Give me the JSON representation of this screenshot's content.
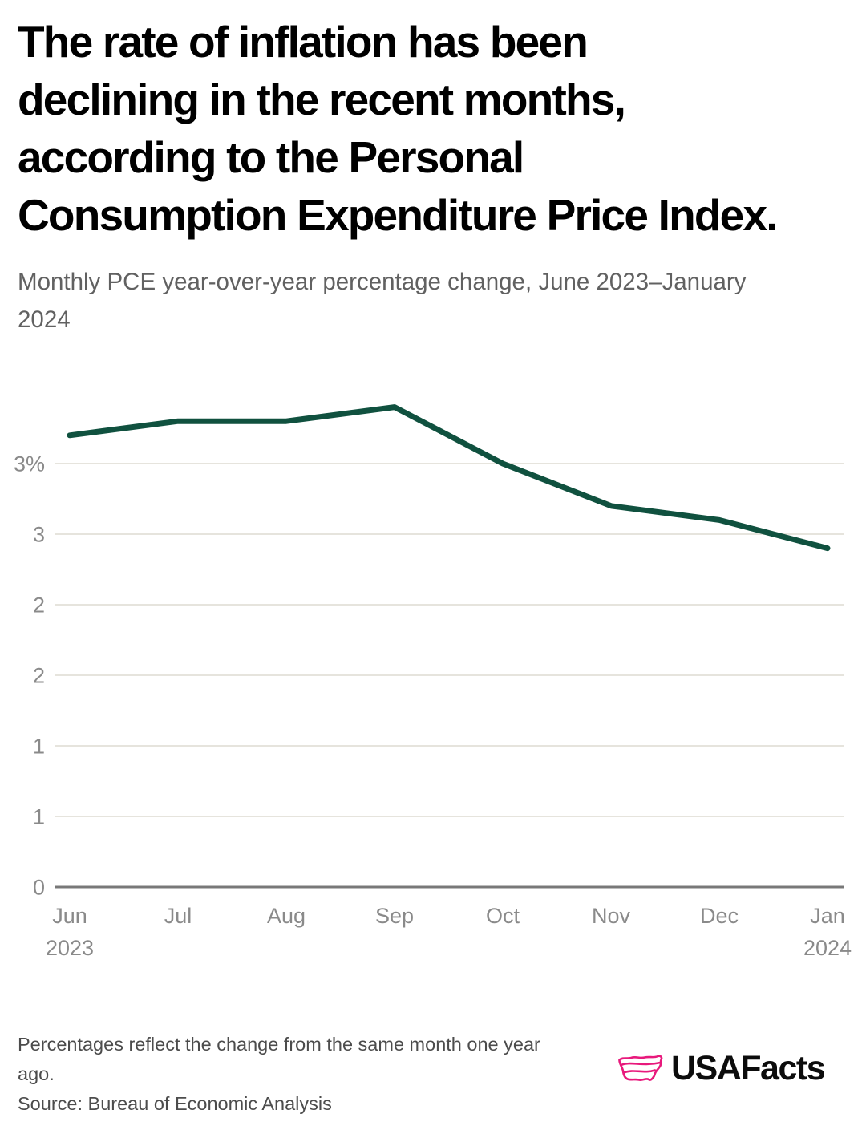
{
  "page": {
    "background": "#ffffff"
  },
  "header": {
    "title": "The rate of inflation has been declining in the recent months, according to the Personal Consumption Expenditure Price Index.",
    "title_lines": [
      "The rate of inflation has been",
      "declining in the recent months,",
      "according to the Personal",
      "Consumption Expenditure Price Index."
    ],
    "subtitle": "Monthly PCE year-over-year percentage change, June 2023–January 2024",
    "subtitle_lines": [
      "Monthly PCE year-over-year percentage change, June 2023–January",
      "2024"
    ]
  },
  "chart_data": {
    "type": "line",
    "title": "The rate of inflation has been declining in the recent months, according to the Personal Consumption Expenditure Price Index.",
    "subtitle": "Monthly PCE year-over-year percentage change, June 2023–January 2024",
    "categories": [
      "Jun 2023",
      "Jul",
      "Aug",
      "Sep",
      "Oct",
      "Nov",
      "Dec",
      "Jan 2024"
    ],
    "x_tick_labels": [
      [
        "Jun",
        "2023"
      ],
      [
        "Jul"
      ],
      [
        "Aug"
      ],
      [
        "Sep"
      ],
      [
        "Oct"
      ],
      [
        "Nov"
      ],
      [
        "Dec"
      ],
      [
        "Jan",
        "2024"
      ]
    ],
    "series": [
      {
        "name": "Monthly PCE year-over-year percentage change",
        "values": [
          3.2,
          3.3,
          3.3,
          3.4,
          3.0,
          2.7,
          2.6,
          2.4
        ]
      }
    ],
    "ylim": [
      0,
      3.55
    ],
    "y_gridlines": [
      {
        "value": 0,
        "label": "0"
      },
      {
        "value": 0.5,
        "label": "1"
      },
      {
        "value": 1,
        "label": "1"
      },
      {
        "value": 1.5,
        "label": "2"
      },
      {
        "value": 2,
        "label": "2"
      },
      {
        "value": 2.5,
        "label": "3"
      },
      {
        "value": 3,
        "label": "3%"
      }
    ],
    "grid": "horizontal",
    "legend": "none",
    "line_color": "#10513f",
    "gridline_color": "#e6e4dd",
    "axis_color": "#787878",
    "tick_label_color": "#8a8a8a"
  },
  "footer": {
    "note": "Percentages reflect the change from the same month one year ago.",
    "note_lines": [
      "Percentages reflect the change from the same month one year",
      "ago."
    ],
    "source": "Source: Bureau of Economic Analysis",
    "logo_text": "USAFacts",
    "logo_color": "#e8197c"
  }
}
